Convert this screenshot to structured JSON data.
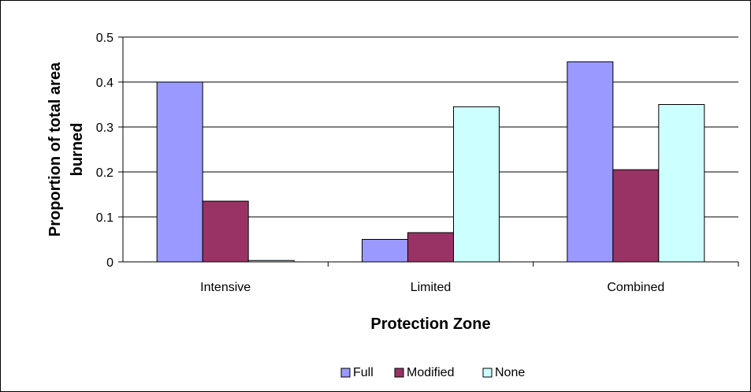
{
  "chart_data": {
    "type": "bar",
    "title": "",
    "xlabel": "Protection Zone",
    "ylabel": "Proportion of total area burned",
    "categories": [
      "Intensive",
      "Limited",
      "Combined"
    ],
    "series": [
      {
        "name": "Full",
        "values": [
          0.4,
          0.05,
          0.445
        ],
        "color": "#9999ff"
      },
      {
        "name": "Modified",
        "values": [
          0.135,
          0.065,
          0.205
        ],
        "color": "#993366"
      },
      {
        "name": "None",
        "values": [
          0.003,
          0.345,
          0.35
        ],
        "color": "#ccffff"
      }
    ],
    "ylim": [
      0,
      0.5
    ],
    "yticks": [
      "0",
      "0.1",
      "0.2",
      "0.3",
      "0.4",
      "0.5"
    ],
    "grid": true,
    "legend_position": "bottom"
  }
}
